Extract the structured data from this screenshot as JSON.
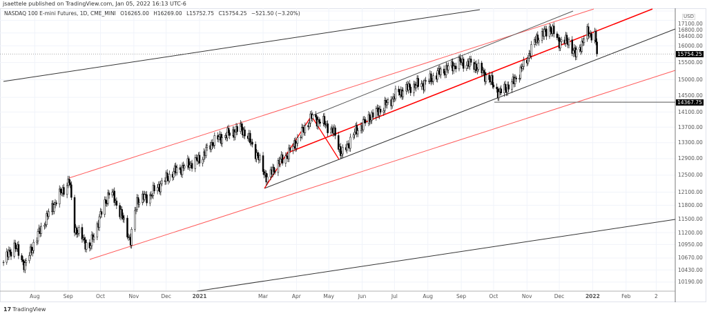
{
  "publisher_line": "jsaettele published on TradingView.com, Jan 05, 2022 16:13 UTC-6",
  "legend": {
    "symbol": "NASDAQ 100 E-mini Futures, 1D, CME_MINI",
    "open": "O16265.00",
    "high": "H16269.00",
    "low": "L15752.75",
    "close": "C15754.25",
    "change": "−521.50 (−3.20%)"
  },
  "footer": {
    "logo_text": "TradingView",
    "logo_mark": "17"
  },
  "chart_data": {
    "type": "candlestick",
    "title": "NASDAQ 100 E-mini Futures, 1D, CME_MINI",
    "y_scale": "log",
    "ylim": [
      10190,
      17100
    ],
    "currency": "USD",
    "grid": true,
    "y_ticks": [
      "17100.00",
      "16800.00",
      "16400.00",
      "16000.00",
      "15500.00",
      "15000.00",
      "14500.00",
      "14100.00",
      "13700.00",
      "13300.00",
      "12900.00",
      "12500.00",
      "12100.00",
      "11800.00",
      "11500.00",
      "11200.00",
      "10950.00",
      "10670.00",
      "10430.00",
      "10190.00"
    ],
    "x_ticks": [
      {
        "label": "Aug",
        "date": "2020-08-01"
      },
      {
        "label": "Sep",
        "date": "2020-09-01"
      },
      {
        "label": "Oct",
        "date": "2020-10-01"
      },
      {
        "label": "Nov",
        "date": "2020-11-01"
      },
      {
        "label": "Dec",
        "date": "2020-12-01"
      },
      {
        "label": "2021",
        "date": "2021-01-01"
      },
      {
        "label": "Mar",
        "date": "2021-03-01"
      },
      {
        "label": "Apr",
        "date": "2021-04-01"
      },
      {
        "label": "May",
        "date": "2021-05-01"
      },
      {
        "label": "Jun",
        "date": "2021-06-01"
      },
      {
        "label": "Jul",
        "date": "2021-07-01"
      },
      {
        "label": "Aug",
        "date": "2021-08-01"
      },
      {
        "label": "Sep",
        "date": "2021-09-01"
      },
      {
        "label": "Oct",
        "date": "2021-10-01"
      },
      {
        "label": "Nov",
        "date": "2021-11-01"
      },
      {
        "label": "Dec",
        "date": "2021-12-01"
      },
      {
        "label": "2022",
        "date": "2022-01-01"
      },
      {
        "label": "Feb",
        "date": "2022-02-01"
      },
      {
        "label": "2",
        "date": "2022-03-01"
      }
    ],
    "last_price_label": "15754.25",
    "level_label": "14367.75",
    "level_value": 14367.75,
    "closes": [
      [
        "2020-07-03",
        10585
      ],
      [
        "2020-07-13",
        10942
      ],
      [
        "2020-07-23",
        10514
      ],
      [
        "2020-08-01",
        11013
      ],
      [
        "2020-08-14",
        11612
      ],
      [
        "2020-08-23",
        12000
      ],
      [
        "2020-09-02",
        12366
      ],
      [
        "2020-09-07",
        11307
      ],
      [
        "2020-09-14",
        11086
      ],
      [
        "2020-09-21",
        10869
      ],
      [
        "2020-09-27",
        11307
      ],
      [
        "2020-10-10",
        12158
      ],
      [
        "2020-10-20",
        11612
      ],
      [
        "2020-10-29",
        11013
      ],
      [
        "2020-11-04",
        11921
      ],
      [
        "2020-11-15",
        12000
      ],
      [
        "2020-11-24",
        12239
      ],
      [
        "2020-12-07",
        12560
      ],
      [
        "2020-12-20",
        12733
      ],
      [
        "2021-01-02",
        12900
      ],
      [
        "2021-01-14",
        13340
      ],
      [
        "2021-01-27",
        13510
      ],
      [
        "2021-02-09",
        13680
      ],
      [
        "2021-02-19",
        13245
      ],
      [
        "2021-03-05",
        12398
      ],
      [
        "2021-03-13",
        12733
      ],
      [
        "2021-03-26",
        13071
      ],
      [
        "2021-04-15",
        13959
      ],
      [
        "2021-04-28",
        13781
      ],
      [
        "2021-05-07",
        13510
      ],
      [
        "2021-05-13",
        12986
      ],
      [
        "2021-05-26",
        13595
      ],
      [
        "2021-06-08",
        13959
      ],
      [
        "2021-06-21",
        14236
      ],
      [
        "2021-07-04",
        14617
      ],
      [
        "2021-07-17",
        14812
      ],
      [
        "2021-07-30",
        14911
      ],
      [
        "2021-08-12",
        15211
      ],
      [
        "2021-09-01",
        15512
      ],
      [
        "2021-09-14",
        15410
      ],
      [
        "2021-09-27",
        15014
      ],
      [
        "2021-10-06",
        14617
      ],
      [
        "2021-10-19",
        14911
      ],
      [
        "2021-10-29",
        15410
      ],
      [
        "2021-11-10",
        16242
      ],
      [
        "2021-11-16",
        16350
      ],
      [
        "2021-11-22",
        16568
      ],
      [
        "2021-12-01",
        16137
      ],
      [
        "2021-12-10",
        16137
      ],
      [
        "2021-12-16",
        15718
      ],
      [
        "2021-12-27",
        16393
      ],
      [
        "2022-01-03",
        16350
      ],
      [
        "2022-01-05",
        15754.25
      ]
    ]
  },
  "colors": {
    "up": "#ffffff",
    "down": "#000000",
    "channel_red": "#ff0000",
    "trend_black": "#000000",
    "grid": "#f0f3fa"
  }
}
